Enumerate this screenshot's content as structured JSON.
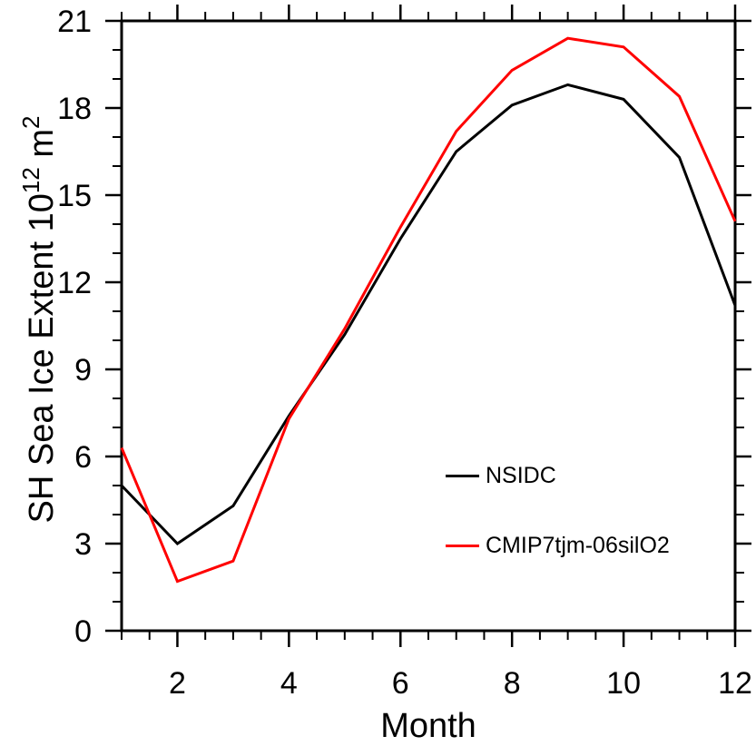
{
  "chart_data": {
    "type": "line",
    "title": "",
    "xlabel": "Month",
    "ylabel": "SH Sea Ice Extent 10^12 m^2",
    "ylabel_parts": [
      {
        "t": "SH Sea Ice Extent 10"
      },
      {
        "sup": "12"
      },
      {
        "t": " m"
      },
      {
        "sup": "2"
      }
    ],
    "x": [
      1,
      2,
      3,
      4,
      5,
      6,
      7,
      8,
      9,
      10,
      11,
      12
    ],
    "xlim": [
      1,
      12
    ],
    "ylim": [
      0,
      21
    ],
    "x_major_ticks": [
      2,
      4,
      6,
      8,
      10,
      12
    ],
    "x_minor_step": 0.5,
    "y_major_ticks": [
      0,
      3,
      6,
      9,
      12,
      15,
      18,
      21
    ],
    "y_minor_step": 1,
    "grid": false,
    "legend_position": "center-right-inside",
    "series": [
      {
        "name": "NSIDC",
        "color": "#000000",
        "values": [
          5.0,
          3.0,
          4.3,
          7.4,
          10.2,
          13.5,
          16.5,
          18.1,
          18.8,
          18.3,
          16.3,
          11.2
        ]
      },
      {
        "name": "CMIP7tjm-06silO2",
        "color": "#ff0000",
        "values": [
          6.3,
          1.7,
          2.4,
          7.3,
          10.4,
          13.9,
          17.2,
          19.3,
          20.4,
          20.1,
          18.4,
          14.1
        ]
      }
    ]
  }
}
